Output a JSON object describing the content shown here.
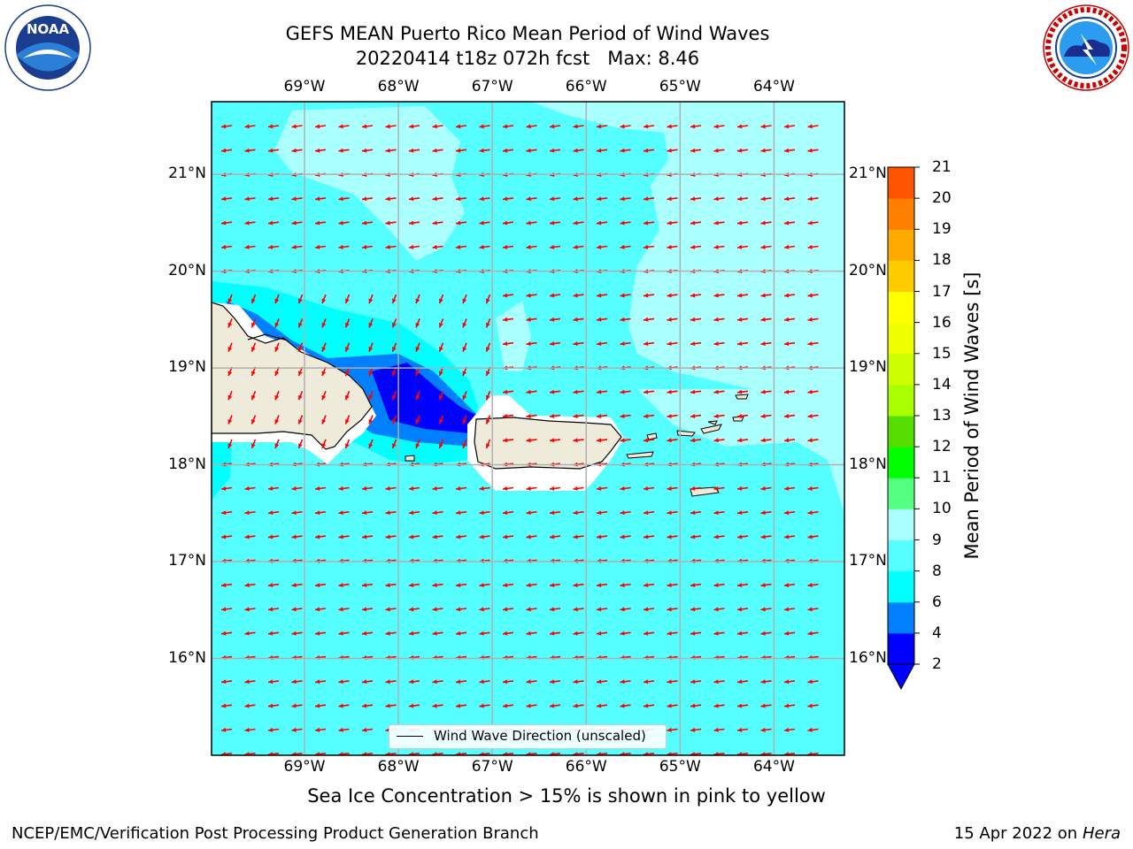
{
  "header": {
    "title_line1": "GEFS MEAN Puerto Rico Mean Period of Wind Waves",
    "title_line2": "20220414 t18z 072h fcst   Max: 8.46"
  },
  "logos": {
    "left": "NOAA",
    "left_ring_text": "NATIONAL OCEANIC AND ATMOSPHERIC ADMINISTRATION · U.S. DEPARTMENT OF COMMERCE",
    "right_ring_text": "NATIONAL WEATHER SERVICE"
  },
  "map": {
    "lon_labels": [
      "69°W",
      "68°W",
      "67°W",
      "66°W",
      "65°W",
      "64°W"
    ],
    "lat_labels": [
      "21°N",
      "20°N",
      "19°N",
      "18°N",
      "17°N",
      "16°N"
    ],
    "lon_range": [
      -69.99,
      -63.25
    ],
    "lat_range": [
      15.0,
      21.75
    ],
    "arrow_color": "#ff0000",
    "ocean_color": "#55ffff",
    "land_color": "#efebda",
    "max_value": 8.46,
    "legend_label": "Wind Wave Direction (unscaled)"
  },
  "colorbar": {
    "label": "Mean Period of Wind Waves [s]",
    "ticks": [
      2,
      4,
      6,
      8,
      9,
      10,
      11,
      12,
      13,
      14,
      15,
      16,
      17,
      18,
      19,
      20,
      21
    ],
    "colors": [
      "#0000ff",
      "#0080ff",
      "#00ffff",
      "#55ffff",
      "#aaffff",
      "#55ff80",
      "#00ff00",
      "#55dd00",
      "#aaff00",
      "#ccff00",
      "#eeff00",
      "#ffff00",
      "#ffcc00",
      "#ffaa00",
      "#ff8000",
      "#ff5500",
      "#ff2a00",
      "#ff0000"
    ],
    "under_color": "#0000ff"
  },
  "subtitle": "Sea Ice Concentration > 15% is shown in pink to yellow",
  "footer": {
    "left": "NCEP/EMC/Verification Post Processing Product Generation Branch",
    "date": "15 Apr 2022 on",
    "machine": "Hera"
  }
}
